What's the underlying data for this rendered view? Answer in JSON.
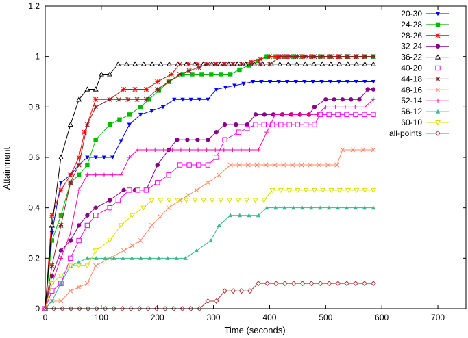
{
  "chart_data": {
    "type": "line",
    "title": "",
    "xlabel": "Time (seconds)",
    "ylabel": "Attainment",
    "xlim": [
      0,
      750
    ],
    "ylim": [
      0,
      1.2
    ],
    "xticks": [
      0,
      100,
      200,
      300,
      400,
      500,
      600,
      700
    ],
    "yticks": [
      0,
      0.2,
      0.4,
      0.6,
      0.8,
      1,
      1.2
    ],
    "grid": false,
    "legend": "top-right",
    "series": [
      {
        "name": "20-30",
        "color": "#0000ff",
        "marker": "triangle-down",
        "points": [
          [
            0,
            0
          ],
          [
            12,
            0.3
          ],
          [
            28,
            0.5
          ],
          [
            45,
            0.53
          ],
          [
            60,
            0.57
          ],
          [
            75,
            0.6
          ],
          [
            120,
            0.6
          ],
          [
            150,
            0.73
          ],
          [
            170,
            0.77
          ],
          [
            210,
            0.8
          ],
          [
            230,
            0.83
          ],
          [
            290,
            0.83
          ],
          [
            305,
            0.87
          ],
          [
            370,
            0.9
          ],
          [
            585,
            0.9
          ]
        ]
      },
      {
        "name": "24-28",
        "color": "#00bb00",
        "marker": "square",
        "points": [
          [
            0,
            0
          ],
          [
            12,
            0.27
          ],
          [
            28,
            0.37
          ],
          [
            45,
            0.5
          ],
          [
            60,
            0.53
          ],
          [
            75,
            0.57
          ],
          [
            90,
            0.67
          ],
          [
            115,
            0.73
          ],
          [
            150,
            0.77
          ],
          [
            170,
            0.8
          ],
          [
            185,
            0.83
          ],
          [
            220,
            0.9
          ],
          [
            245,
            0.93
          ],
          [
            330,
            0.93
          ],
          [
            395,
            1.0
          ],
          [
            585,
            1.0
          ]
        ]
      },
      {
        "name": "28-26",
        "color": "#ff0000",
        "marker": "star",
        "points": [
          [
            0,
            0
          ],
          [
            12,
            0.37
          ],
          [
            28,
            0.47
          ],
          [
            45,
            0.53
          ],
          [
            60,
            0.6
          ],
          [
            70,
            0.7
          ],
          [
            90,
            0.83
          ],
          [
            115,
            0.83
          ],
          [
            140,
            0.87
          ],
          [
            180,
            0.87
          ],
          [
            200,
            0.9
          ],
          [
            225,
            0.93
          ],
          [
            240,
            0.97
          ],
          [
            350,
            0.97
          ],
          [
            400,
            1.0
          ],
          [
            585,
            1.0
          ]
        ]
      },
      {
        "name": "32-24",
        "color": "#880088",
        "marker": "circle",
        "points": [
          [
            0,
            0
          ],
          [
            12,
            0.13
          ],
          [
            28,
            0.23
          ],
          [
            45,
            0.27
          ],
          [
            60,
            0.33
          ],
          [
            75,
            0.37
          ],
          [
            90,
            0.4
          ],
          [
            115,
            0.43
          ],
          [
            140,
            0.47
          ],
          [
            180,
            0.47
          ],
          [
            200,
            0.57
          ],
          [
            220,
            0.63
          ],
          [
            235,
            0.67
          ],
          [
            290,
            0.67
          ],
          [
            305,
            0.7
          ],
          [
            320,
            0.73
          ],
          [
            360,
            0.73
          ],
          [
            375,
            0.77
          ],
          [
            470,
            0.77
          ],
          [
            480,
            0.8
          ],
          [
            500,
            0.83
          ],
          [
            560,
            0.83
          ],
          [
            575,
            0.87
          ],
          [
            585,
            0.87
          ]
        ]
      },
      {
        "name": "36-22",
        "color": "#000000",
        "marker": "triangle-up",
        "points": [
          [
            0,
            0
          ],
          [
            12,
            0.33
          ],
          [
            28,
            0.6
          ],
          [
            45,
            0.73
          ],
          [
            60,
            0.83
          ],
          [
            75,
            0.87
          ],
          [
            90,
            0.87
          ],
          [
            100,
            0.93
          ],
          [
            115,
            0.93
          ],
          [
            130,
            0.97
          ],
          [
            585,
            0.97
          ]
        ]
      },
      {
        "name": "40-20",
        "color": "#ff00ff",
        "marker": "square-open",
        "points": [
          [
            0,
            0
          ],
          [
            12,
            0.07
          ],
          [
            28,
            0.1
          ],
          [
            45,
            0.2
          ],
          [
            60,
            0.27
          ],
          [
            75,
            0.33
          ],
          [
            90,
            0.37
          ],
          [
            115,
            0.4
          ],
          [
            130,
            0.43
          ],
          [
            150,
            0.47
          ],
          [
            180,
            0.47
          ],
          [
            200,
            0.5
          ],
          [
            220,
            0.53
          ],
          [
            240,
            0.57
          ],
          [
            290,
            0.57
          ],
          [
            305,
            0.6
          ],
          [
            320,
            0.67
          ],
          [
            345,
            0.7
          ],
          [
            375,
            0.73
          ],
          [
            480,
            0.73
          ],
          [
            490,
            0.77
          ],
          [
            585,
            0.77
          ]
        ]
      },
      {
        "name": "44-18",
        "color": "#882222",
        "marker": "star",
        "points": [
          [
            0,
            0
          ],
          [
            12,
            0.17
          ],
          [
            28,
            0.33
          ],
          [
            45,
            0.5
          ],
          [
            60,
            0.57
          ],
          [
            75,
            0.73
          ],
          [
            90,
            0.8
          ],
          [
            115,
            0.83
          ],
          [
            180,
            0.83
          ],
          [
            200,
            0.87
          ],
          [
            240,
            0.93
          ],
          [
            290,
            0.97
          ],
          [
            350,
            0.97
          ],
          [
            400,
            0.97
          ],
          [
            420,
            1.0
          ],
          [
            585,
            1.0
          ]
        ]
      },
      {
        "name": "48-16",
        "color": "#ff8866",
        "marker": "x",
        "points": [
          [
            0,
            0
          ],
          [
            12,
            0.03
          ],
          [
            28,
            0.03
          ],
          [
            45,
            0.07
          ],
          [
            75,
            0.1
          ],
          [
            90,
            0.17
          ],
          [
            115,
            0.2
          ],
          [
            140,
            0.23
          ],
          [
            170,
            0.27
          ],
          [
            190,
            0.33
          ],
          [
            220,
            0.4
          ],
          [
            240,
            0.43
          ],
          [
            270,
            0.47
          ],
          [
            290,
            0.5
          ],
          [
            310,
            0.53
          ],
          [
            330,
            0.57
          ],
          [
            520,
            0.57
          ],
          [
            530,
            0.63
          ],
          [
            585,
            0.63
          ]
        ]
      },
      {
        "name": "52-14",
        "color": "#ff00aa",
        "marker": "plus",
        "points": [
          [
            0,
            0
          ],
          [
            12,
            0.1
          ],
          [
            28,
            0.2
          ],
          [
            45,
            0.3
          ],
          [
            60,
            0.47
          ],
          [
            75,
            0.53
          ],
          [
            135,
            0.53
          ],
          [
            150,
            0.6
          ],
          [
            165,
            0.63
          ],
          [
            380,
            0.63
          ],
          [
            395,
            0.7
          ],
          [
            410,
            0.77
          ],
          [
            485,
            0.77
          ],
          [
            500,
            0.8
          ],
          [
            570,
            0.8
          ],
          [
            585,
            0.83
          ]
        ]
      },
      {
        "name": "56-12",
        "color": "#33bb88",
        "marker": "triangle-up-filled",
        "points": [
          [
            0,
            0
          ],
          [
            12,
            0.03
          ],
          [
            28,
            0.1
          ],
          [
            45,
            0.17
          ],
          [
            75,
            0.2
          ],
          [
            250,
            0.2
          ],
          [
            270,
            0.23
          ],
          [
            295,
            0.27
          ],
          [
            310,
            0.33
          ],
          [
            330,
            0.37
          ],
          [
            380,
            0.37
          ],
          [
            395,
            0.4
          ],
          [
            585,
            0.4
          ]
        ]
      },
      {
        "name": "60-10",
        "color": "#dddd00",
        "marker": "triangle-down-open",
        "points": [
          [
            0,
            0
          ],
          [
            12,
            0.1
          ],
          [
            28,
            0.13
          ],
          [
            45,
            0.17
          ],
          [
            75,
            0.17
          ],
          [
            90,
            0.23
          ],
          [
            115,
            0.27
          ],
          [
            135,
            0.33
          ],
          [
            155,
            0.37
          ],
          [
            175,
            0.4
          ],
          [
            190,
            0.43
          ],
          [
            390,
            0.43
          ],
          [
            405,
            0.47
          ],
          [
            585,
            0.47
          ]
        ]
      },
      {
        "name": "all-points",
        "color": "#aa3333",
        "marker": "diamond-open",
        "points": [
          [
            0,
            0
          ],
          [
            275,
            0
          ],
          [
            290,
            0.03
          ],
          [
            305,
            0.03
          ],
          [
            320,
            0.07
          ],
          [
            365,
            0.07
          ],
          [
            380,
            0.1
          ],
          [
            585,
            0.1
          ]
        ]
      }
    ]
  }
}
